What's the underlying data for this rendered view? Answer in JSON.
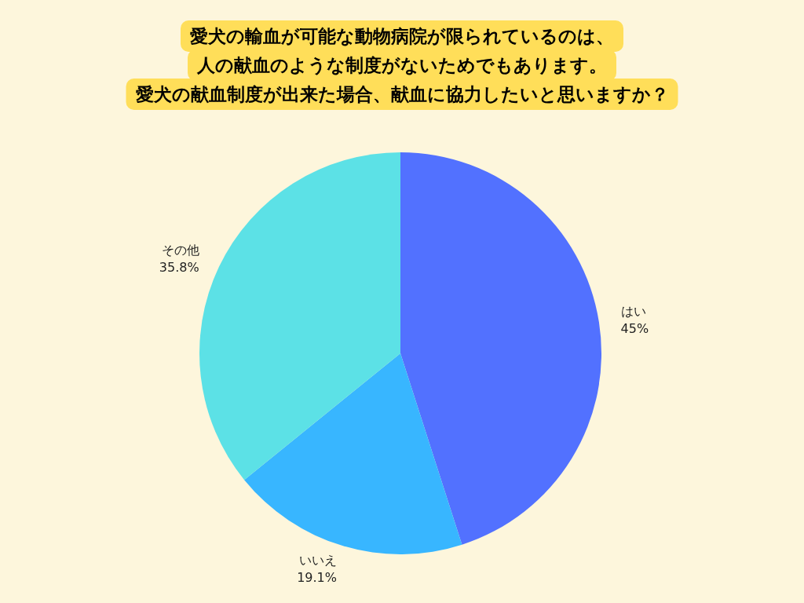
{
  "chart_data": {
    "type": "pie",
    "title": "愛犬の輸血が可能な動物病院が限られているのは、人の献血のような制度がないためでもあります。",
    "subtitle": "愛犬の献血制度が出来た場合、献血に協力したいと思いますか？",
    "categories": [
      "はい",
      "いいえ",
      "その他"
    ],
    "values": [
      45,
      19.1,
      35.8
    ],
    "value_labels": [
      "45%",
      "19.1%",
      "35.8%"
    ],
    "colors": [
      "#5271ff",
      "#38b6ff",
      "#5ce1e6"
    ],
    "legend": false
  }
}
